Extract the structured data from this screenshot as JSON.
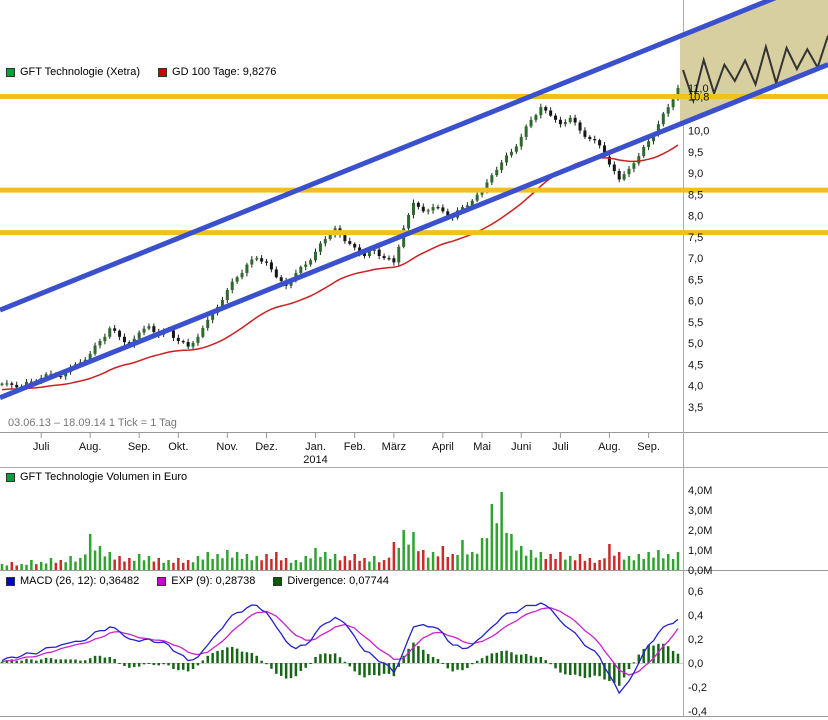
{
  "main_chart": {
    "legend": [
      {
        "swatch_color": "#00a03c",
        "label": "GFT Technologie (Xetra)"
      },
      {
        "swatch_color": "#cc0000",
        "label": "GD 100 Tage: 9,8276"
      }
    ],
    "period_text": "03.06.13 – 18.09.14   1 Tick = 1 Tag",
    "y_ticks": [
      {
        "label": "11,0",
        "value": 11.0
      },
      {
        "label": "10,8",
        "value": 10.8
      },
      {
        "label": "10,0",
        "value": 10.0
      },
      {
        "label": "9,5",
        "value": 9.5
      },
      {
        "label": "9,0",
        "value": 9.0
      },
      {
        "label": "8,5",
        "value": 8.5
      },
      {
        "label": "8,0",
        "value": 8.0
      },
      {
        "label": "7,5",
        "value": 7.5
      },
      {
        "label": "7,0",
        "value": 7.0
      },
      {
        "label": "6,5",
        "value": 6.5
      },
      {
        "label": "6,0",
        "value": 6.0
      },
      {
        "label": "5,5",
        "value": 5.5
      },
      {
        "label": "5,0",
        "value": 5.0
      },
      {
        "label": "4,5",
        "value": 4.5
      },
      {
        "label": "4,0",
        "value": 4.0
      },
      {
        "label": "3,5",
        "value": 3.5
      }
    ],
    "x_ticks": [
      {
        "label": "Juli",
        "week": 4
      },
      {
        "label": "Aug.",
        "week": 9
      },
      {
        "label": "Sep.",
        "week": 14
      },
      {
        "label": "Okt.",
        "week": 18
      },
      {
        "label": "Nov.",
        "week": 23
      },
      {
        "label": "Dez.",
        "week": 27
      },
      {
        "label": "Jan.",
        "week": 32
      },
      {
        "label": "Feb.",
        "week": 36
      },
      {
        "label": "März",
        "week": 40
      },
      {
        "label": "April",
        "week": 45
      },
      {
        "label": "Mai",
        "week": 49
      },
      {
        "label": "Juni",
        "week": 53
      },
      {
        "label": "Juli",
        "week": 57
      },
      {
        "label": "Aug.",
        "week": 62
      },
      {
        "label": "Sep.",
        "week": 66
      }
    ],
    "year_tick": {
      "label": "2014",
      "week": 32
    },
    "colors": {
      "gold_line": "#f2c01d",
      "channel_blue": "#3a50cc",
      "projection_fill": "#d8cfa0",
      "projection_line": "#333333",
      "ma_red": "#cc2020",
      "candle_up": "#2d6b2d",
      "candle_down": "#161616",
      "wick": "#222222"
    }
  },
  "volume_chart": {
    "legend": [
      {
        "swatch_color": "#00a03c",
        "label": "GFT Technologie Volumen in Euro"
      }
    ],
    "y_ticks": [
      {
        "label": "4,0M",
        "value": 4
      },
      {
        "label": "3,0M",
        "value": 3
      },
      {
        "label": "2,0M",
        "value": 2
      },
      {
        "label": "1,0M",
        "value": 1
      },
      {
        "label": "0,0M",
        "value": 0
      }
    ],
    "colors": {
      "up": "#2fa32f",
      "down": "#cc2a2a"
    }
  },
  "macd_chart": {
    "legend": [
      {
        "swatch_color": "#0000cc",
        "label": "MACD (26, 12): 0,36482"
      },
      {
        "swatch_color": "#cc00cc",
        "label": "EXP (9): 0,28738"
      },
      {
        "swatch_color": "#005c00",
        "label": "Divergence: 0,07744"
      }
    ],
    "y_ticks": [
      {
        "label": "0,6",
        "value": 0.6
      },
      {
        "label": "0,4",
        "value": 0.4
      },
      {
        "label": "0,2",
        "value": 0.2
      },
      {
        "label": "0,0",
        "value": 0.0
      },
      {
        "label": "-0,2",
        "value": -0.2
      },
      {
        "label": "-0,4",
        "value": -0.4
      }
    ],
    "colors": {
      "macd": "#2222cc",
      "exp": "#cc22cc",
      "hist": "#176617"
    }
  },
  "chart_data": [
    {
      "type": "candlestick",
      "name": "GFT Technologie (Xetra)",
      "period": "03.06.13 - 18.09.14",
      "tick": "1 Tick = 1 Tag",
      "gd100_last": 9.8276,
      "ylim": [
        3.5,
        11.0
      ],
      "closes_weekly": [
        4.05,
        4.02,
        3.98,
        4.1,
        4.18,
        4.28,
        4.22,
        4.42,
        4.55,
        4.75,
        5.05,
        5.35,
        5.15,
        4.95,
        5.25,
        5.4,
        5.2,
        5.3,
        5.05,
        4.92,
        5.15,
        5.55,
        5.85,
        6.25,
        6.55,
        6.85,
        7.0,
        6.9,
        6.55,
        6.35,
        6.65,
        6.85,
        7.15,
        7.45,
        7.7,
        7.4,
        7.25,
        7.05,
        7.2,
        7.0,
        6.9,
        7.7,
        8.3,
        8.1,
        8.2,
        8.1,
        7.95,
        8.2,
        8.35,
        8.6,
        8.95,
        9.25,
        9.5,
        9.85,
        10.25,
        10.55,
        10.35,
        10.15,
        10.3,
        10.0,
        9.8,
        9.65,
        9.2,
        8.85,
        9.1,
        9.4,
        9.75,
        10.15,
        10.55,
        11.0
      ],
      "horizontal_lines": [
        10.8,
        8.6,
        7.6
      ],
      "trend_channel": {
        "lower_price_at_left": 3.72,
        "lower_price_at_right": 11.55,
        "upper_price_at_left": 5.78,
        "upper_price_at_right": 13.62
      }
    },
    {
      "type": "bar",
      "name": "GFT Technologie Volumen in Euro",
      "unit": "millions EUR",
      "ylim": [
        0,
        4
      ],
      "values_weekly": [
        0.3,
        0.4,
        0.3,
        0.5,
        0.4,
        0.6,
        0.5,
        0.7,
        0.6,
        1.8,
        1.2,
        0.9,
        0.7,
        0.6,
        0.8,
        0.7,
        0.6,
        0.5,
        0.6,
        0.5,
        0.7,
        0.9,
        0.8,
        1.0,
        0.9,
        0.8,
        0.7,
        0.8,
        0.9,
        0.6,
        0.5,
        0.7,
        1.1,
        0.9,
        0.8,
        0.7,
        0.8,
        0.6,
        0.7,
        0.5,
        1.4,
        2.0,
        1.9,
        1.0,
        0.9,
        1.2,
        0.8,
        1.5,
        0.9,
        1.6,
        3.3,
        3.9,
        1.8,
        1.2,
        1.0,
        0.9,
        0.8,
        0.9,
        0.7,
        0.8,
        0.6,
        0.5,
        1.3,
        0.9,
        0.7,
        0.8,
        0.9,
        1.0,
        0.8,
        0.9
      ]
    },
    {
      "type": "line",
      "name": "MACD indicator",
      "ylim": [
        -0.4,
        0.6
      ],
      "series": [
        {
          "name": "MACD (26, 12)",
          "last": 0.36482,
          "values_weekly": [
            0.02,
            0.05,
            0.06,
            0.08,
            0.1,
            0.13,
            0.15,
            0.17,
            0.18,
            0.22,
            0.27,
            0.3,
            0.26,
            0.2,
            0.18,
            0.2,
            0.17,
            0.15,
            0.08,
            0.02,
            0.05,
            0.15,
            0.25,
            0.35,
            0.42,
            0.46,
            0.48,
            0.42,
            0.3,
            0.18,
            0.12,
            0.15,
            0.25,
            0.33,
            0.38,
            0.33,
            0.22,
            0.1,
            0.05,
            0.0,
            -0.08,
            0.1,
            0.3,
            0.32,
            0.3,
            0.25,
            0.15,
            0.12,
            0.15,
            0.22,
            0.3,
            0.38,
            0.42,
            0.45,
            0.48,
            0.5,
            0.45,
            0.35,
            0.28,
            0.2,
            0.12,
            0.05,
            -0.1,
            -0.25,
            -0.15,
            0.0,
            0.15,
            0.25,
            0.32,
            0.36482
          ]
        },
        {
          "name": "EXP (9)",
          "last": 0.28738,
          "values_weekly": [
            0.01,
            0.02,
            0.04,
            0.05,
            0.07,
            0.09,
            0.12,
            0.14,
            0.16,
            0.18,
            0.21,
            0.25,
            0.26,
            0.24,
            0.21,
            0.2,
            0.19,
            0.17,
            0.14,
            0.09,
            0.07,
            0.09,
            0.15,
            0.22,
            0.3,
            0.37,
            0.42,
            0.43,
            0.39,
            0.31,
            0.23,
            0.19,
            0.2,
            0.25,
            0.3,
            0.32,
            0.29,
            0.22,
            0.15,
            0.09,
            0.03,
            0.04,
            0.13,
            0.21,
            0.25,
            0.25,
            0.22,
            0.18,
            0.16,
            0.18,
            0.22,
            0.28,
            0.33,
            0.38,
            0.42,
            0.45,
            0.46,
            0.43,
            0.38,
            0.31,
            0.24,
            0.16,
            0.05,
            -0.06,
            -0.1,
            -0.07,
            0.0,
            0.09,
            0.18,
            0.28738
          ]
        }
      ],
      "histogram": {
        "name": "Divergence",
        "last": 0.07744,
        "derivation": "MACD - EXP"
      }
    }
  ]
}
